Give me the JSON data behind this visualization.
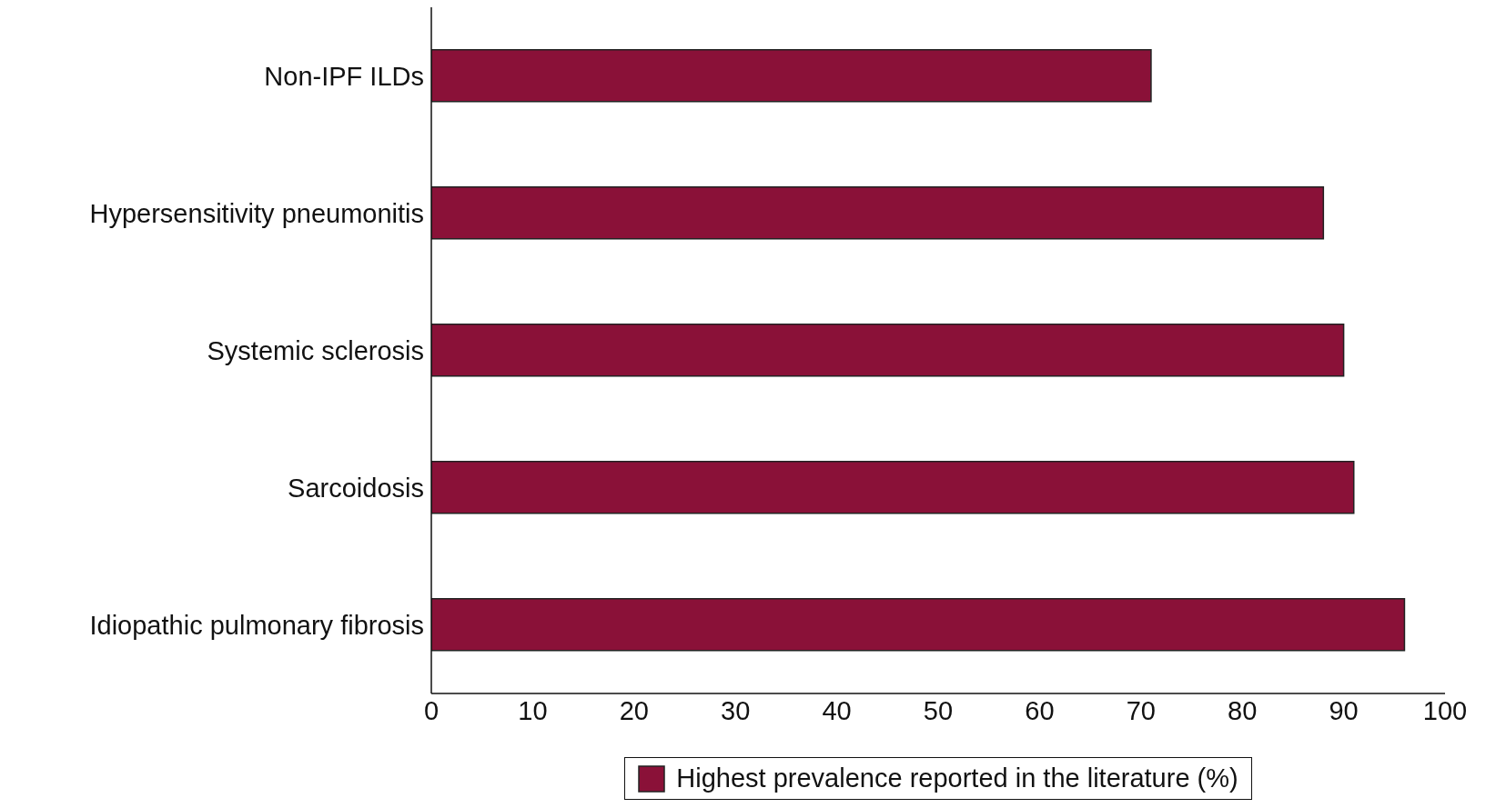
{
  "chart_data": {
    "type": "bar",
    "orientation": "horizontal",
    "categories": [
      "Non-IPF ILDs",
      "Hypersensitivity pneumonitis",
      "Systemic sclerosis",
      "Sarcoidosis",
      "Idiopathic pulmonary fibrosis"
    ],
    "series": [
      {
        "name": "Highest prevalence reported in the literature (%)",
        "color": "#8a1138",
        "values": [
          71,
          88,
          90,
          91,
          96
        ]
      }
    ],
    "xlim": [
      0,
      100
    ],
    "xticks": [
      0,
      10,
      20,
      30,
      40,
      50,
      60,
      70,
      80,
      90,
      100
    ],
    "grid": false,
    "legend": "bottom"
  }
}
